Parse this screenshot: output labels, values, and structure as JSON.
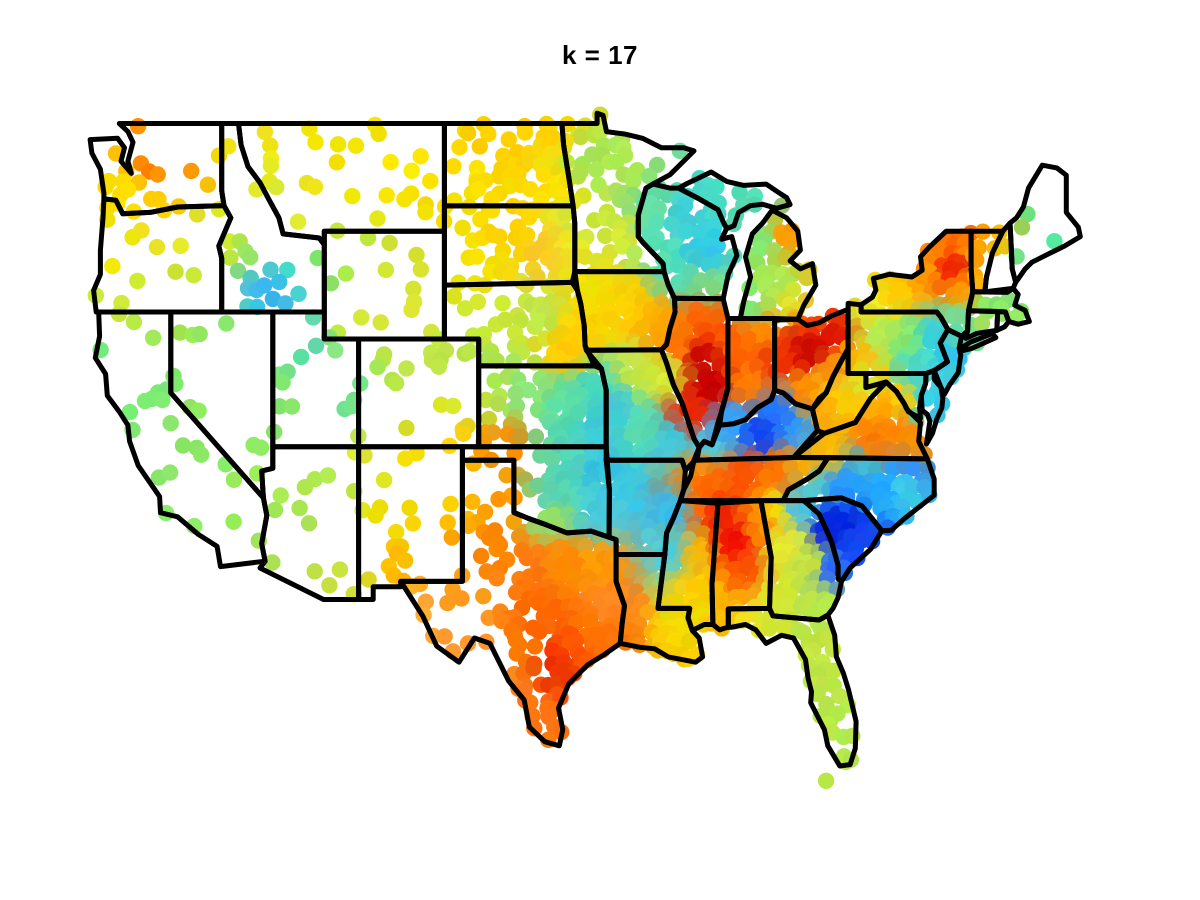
{
  "title": "k = 17",
  "figure": {
    "background": "#ffffff",
    "title_color": "#000000",
    "boundary_color": "#000000",
    "boundary_width": 5
  },
  "chart_data": {
    "type": "scatter",
    "title": "k = 17",
    "description": "US station map, dots colored by cluster value with jet colormap; dense stations in the east, sparse in the west; black state boundaries over dots; no axes.",
    "colormap": "jet",
    "dot_radius": 8.2,
    "projection": {
      "lon_min": -125,
      "lon_max": -67,
      "lat_min": 25,
      "lat_max": 49.5,
      "x_min": 85,
      "x_max": 1080,
      "y_min": 110,
      "y_max": 770
    },
    "density_by_lon": [
      [
        -102.5,
        22
      ],
      [
        -100,
        17
      ],
      [
        -98,
        12.5
      ],
      [
        999,
        9.5
      ]
    ],
    "density_overrides": {
      "NV": 36,
      "CA": 27,
      "OR": 24,
      "WA": 22,
      "ID": 24,
      "UT": 29,
      "AZ": 26,
      "NM": 24,
      "MT": 24,
      "WY": 27,
      "CO": 24,
      "ME": 24,
      "NH": 12.5,
      "VT": 12,
      "MA": 11,
      "CT": 11,
      "RI": 11,
      "MN": 13.5,
      "WI": 11,
      "MIU": 13,
      "MI": 11.5,
      "FL": 12,
      "LI": 10
    },
    "color_field": [
      [
        -123.5,
        48.2,
        "#ffcc00"
      ],
      [
        -122.4,
        47.9,
        "#ff9900"
      ],
      [
        -120.3,
        47.9,
        "#ff2200"
      ],
      [
        -119.3,
        48.5,
        "#ffaa00"
      ],
      [
        -118.4,
        47.6,
        "#ff9900"
      ],
      [
        -120.5,
        46.4,
        "#ffcc00"
      ],
      [
        -123.3,
        46.8,
        "#ffe000"
      ],
      [
        -117.6,
        47.8,
        "#f2e300"
      ],
      [
        -123.5,
        44.6,
        "#f5e800"
      ],
      [
        -121,
        44.5,
        "#e8e82a"
      ],
      [
        -117.8,
        44.8,
        "#e0e82a"
      ],
      [
        -122.5,
        42.3,
        "#cce838"
      ],
      [
        -119,
        42.5,
        "#c8e83d"
      ],
      [
        -116.3,
        46.3,
        "#dcee22"
      ],
      [
        -114.8,
        44.8,
        "#a2e852"
      ],
      [
        -113.8,
        42.9,
        "#38b8f0"
      ],
      [
        -112.8,
        43.4,
        "#48dcc8"
      ],
      [
        -111.6,
        43.9,
        "#80e870"
      ],
      [
        -115.8,
        48.3,
        "#e8e82a"
      ],
      [
        -112.3,
        48.2,
        "#f5e500"
      ],
      [
        -109.5,
        48.3,
        "#f2e200"
      ],
      [
        -106,
        48.2,
        "#ffee00"
      ],
      [
        -104.8,
        46.3,
        "#f8e000"
      ],
      [
        -109.8,
        46.2,
        "#f0e600"
      ],
      [
        -112.8,
        45.8,
        "#e5e830"
      ],
      [
        -110.3,
        44.2,
        "#b5e84d"
      ],
      [
        -107.5,
        43.5,
        "#cde83a"
      ],
      [
        -109.8,
        41.8,
        "#d5e835"
      ],
      [
        -105.8,
        41.8,
        "#e2e82d"
      ],
      [
        -100.8,
        48.2,
        "#ffcc00"
      ],
      [
        -97.8,
        48.6,
        "#ffd400"
      ],
      [
        -97.6,
        46.6,
        "#ffe000"
      ],
      [
        -102.6,
        46.8,
        "#f8e200"
      ],
      [
        -100.2,
        44.9,
        "#ffd400"
      ],
      [
        -98,
        44.3,
        "#ffc825"
      ],
      [
        -102.3,
        44.2,
        "#f5e200"
      ],
      [
        -96.8,
        44.5,
        "#eee822"
      ],
      [
        -100.8,
        41.6,
        "#cce838"
      ],
      [
        -98.3,
        41.8,
        "#bee84a"
      ],
      [
        -96.2,
        41.3,
        "#ffd000"
      ],
      [
        -96.9,
        40.5,
        "#ffcc00"
      ],
      [
        -101.8,
        39.6,
        "#abe852"
      ],
      [
        -99.2,
        39,
        "#8ce878"
      ],
      [
        -96.8,
        38.6,
        "#5cdda2"
      ],
      [
        -95.2,
        39.2,
        "#46d4c0"
      ],
      [
        -95,
        37.5,
        "#3eccd8"
      ],
      [
        -95.8,
        47.6,
        "#a5e855"
      ],
      [
        -93.2,
        47.2,
        "#b2e850"
      ],
      [
        -96.2,
        45.2,
        "#c5e842"
      ],
      [
        -93.8,
        44.6,
        "#d5e835"
      ],
      [
        -91.6,
        46.4,
        "#62dda8"
      ],
      [
        -89.8,
        45.6,
        "#3ed0d8"
      ],
      [
        -91.8,
        44.6,
        "#58ddb5"
      ],
      [
        -88.6,
        44.3,
        "#2ec8e8"
      ],
      [
        -90.2,
        43.1,
        "#52ddba"
      ],
      [
        -88.9,
        42.8,
        "#7ce082"
      ],
      [
        -88.3,
        46.3,
        "#45dcc8"
      ],
      [
        -85.8,
        46.5,
        "#52ddb8"
      ],
      [
        -85.6,
        44.6,
        "#85e86c"
      ],
      [
        -83.8,
        44.8,
        "#ff9900"
      ],
      [
        -84.8,
        43.1,
        "#a8e855"
      ],
      [
        -83.6,
        42.3,
        "#e2e82d"
      ],
      [
        -86.3,
        42.3,
        "#7ee875"
      ],
      [
        -95.2,
        42.6,
        "#f0e000"
      ],
      [
        -93.2,
        42.1,
        "#ffd000"
      ],
      [
        -91.6,
        41.6,
        "#ffaa00"
      ],
      [
        -92.8,
        39.8,
        "#c2e845"
      ],
      [
        -91.2,
        39.6,
        "#d5e835"
      ],
      [
        -94,
        38.3,
        "#42ccd4"
      ],
      [
        -92.6,
        37.6,
        "#58ddb0"
      ],
      [
        -90.6,
        37.1,
        "#3ec8e2"
      ],
      [
        -90.3,
        40.8,
        "#ff7700"
      ],
      [
        -89.2,
        41.9,
        "#ff6200"
      ],
      [
        -88.9,
        40.3,
        "#cc0800"
      ],
      [
        -88.5,
        39.2,
        "#c80000"
      ],
      [
        -89.6,
        38.1,
        "#ee2200"
      ],
      [
        -87.9,
        41.4,
        "#ff5500"
      ],
      [
        -87.1,
        40.6,
        "#ff6600"
      ],
      [
        -86.2,
        39.3,
        "#ff7e00"
      ],
      [
        -85.4,
        41.1,
        "#ff8800"
      ],
      [
        -84.6,
        40.3,
        "#f23000"
      ],
      [
        -82.9,
        40.6,
        "#cc0800"
      ],
      [
        -81.4,
        41.1,
        "#dd1400"
      ],
      [
        -82.5,
        41.7,
        "#ff4400"
      ],
      [
        -81,
        39.6,
        "#ff6a00"
      ],
      [
        -83.1,
        39,
        "#ff8800"
      ],
      [
        -88.6,
        36.9,
        "#48cce8"
      ],
      [
        -87.4,
        37.8,
        "#36a6ff"
      ],
      [
        -85.6,
        37.5,
        "#1144ee"
      ],
      [
        -84.6,
        38.3,
        "#2277ff"
      ],
      [
        -83.4,
        37.6,
        "#2e9aff"
      ],
      [
        -89.2,
        36.1,
        "#ff8800"
      ],
      [
        -88.3,
        35.6,
        "#ff6600"
      ],
      [
        -86.4,
        35.8,
        "#ff5500"
      ],
      [
        -84.6,
        35.9,
        "#ff7700"
      ],
      [
        -83,
        36.3,
        "#ffaa00"
      ],
      [
        -90.5,
        34.6,
        "#35bbee"
      ],
      [
        -90.6,
        33,
        "#46cce8"
      ],
      [
        -89,
        34.8,
        "#ff7700"
      ],
      [
        -89.4,
        33,
        "#ffbb00"
      ],
      [
        -89.2,
        31.6,
        "#ffcc00"
      ],
      [
        -89.4,
        30.6,
        "#f0e000"
      ],
      [
        -88.2,
        34.6,
        "#ee2200"
      ],
      [
        -87,
        33.5,
        "#ee1100"
      ],
      [
        -86.4,
        32.2,
        "#ff5500"
      ],
      [
        -87.4,
        31,
        "#ffaa00"
      ],
      [
        -88,
        30.5,
        "#ffbb00"
      ],
      [
        -85.6,
        34.2,
        "#ff8800"
      ],
      [
        -84.6,
        34.6,
        "#ffdd00"
      ],
      [
        -83.4,
        34.7,
        "#46bbee"
      ],
      [
        -84.2,
        33.2,
        "#e5e82d"
      ],
      [
        -82.6,
        32.6,
        "#cae83d"
      ],
      [
        -84.6,
        31.6,
        "#d8e830"
      ],
      [
        -82.2,
        31.2,
        "#bbe84a"
      ],
      [
        -81.2,
        33.9,
        "#0a28e0"
      ],
      [
        -80.8,
        34.1,
        "#0022dd"
      ],
      [
        -79.9,
        33.6,
        "#1648f0"
      ],
      [
        -81.4,
        32.4,
        "#2266ff"
      ],
      [
        -82.6,
        35.4,
        "#48ccd8"
      ],
      [
        -80.6,
        35.5,
        "#2795ff"
      ],
      [
        -78.6,
        35.3,
        "#22a5ff"
      ],
      [
        -77.1,
        35.4,
        "#38cce8"
      ],
      [
        -76.6,
        36.2,
        "#2288ff"
      ],
      [
        -79.6,
        36.3,
        "#38bbdd"
      ],
      [
        -86.6,
        30.7,
        "#eee020"
      ],
      [
        -84.6,
        30.4,
        "#d5e835"
      ],
      [
        -82.6,
        29.6,
        "#c2e842"
      ],
      [
        -81.6,
        28.1,
        "#bee845"
      ],
      [
        -80.6,
        26.6,
        "#b2e84c"
      ],
      [
        -81.9,
        26.4,
        "#b8e848"
      ],
      [
        -83,
        30.4,
        "#b5e84a"
      ],
      [
        -81.6,
        36.9,
        "#ffbb00"
      ],
      [
        -79.2,
        37.1,
        "#ff7a00"
      ],
      [
        -77.6,
        37.5,
        "#ff8800"
      ],
      [
        -76.4,
        36.9,
        "#ff9900"
      ],
      [
        -78.6,
        38.5,
        "#ffaa00"
      ],
      [
        -77.4,
        38.9,
        "#ffcc00"
      ],
      [
        -80.9,
        38.6,
        "#ffc800"
      ],
      [
        -80.9,
        39.4,
        "#e8e82a"
      ],
      [
        -81.9,
        38.2,
        "#ffaa00"
      ],
      [
        -79.6,
        39.5,
        "#d8e830"
      ],
      [
        -76.6,
        39.4,
        "#48dcc8"
      ],
      [
        -75.6,
        38.5,
        "#38cce8"
      ],
      [
        -75.9,
        39.6,
        "#46cce2"
      ],
      [
        -80.1,
        40.3,
        "#ffbb00"
      ],
      [
        -78.6,
        41.1,
        "#b8e850"
      ],
      [
        -77.1,
        40.9,
        "#85e86c"
      ],
      [
        -76.1,
        40.2,
        "#48dcc8"
      ],
      [
        -75.3,
        41,
        "#38ccdd"
      ],
      [
        -74.6,
        40.3,
        "#2ec8e8"
      ],
      [
        -74.9,
        39.4,
        "#42d0e0"
      ],
      [
        -79.1,
        42.2,
        "#e8e82a"
      ],
      [
        -77.6,
        42.8,
        "#ffcc00"
      ],
      [
        -76.1,
        43.3,
        "#ff9900"
      ],
      [
        -74.4,
        43.5,
        "#ee2200"
      ],
      [
        -73.9,
        44.9,
        "#ff6600"
      ],
      [
        -75.6,
        44.5,
        "#ff8800"
      ],
      [
        -73.9,
        42.7,
        "#ff9900"
      ],
      [
        -74.1,
        41.5,
        "#68dda0"
      ],
      [
        -72.9,
        44.4,
        "#ffaa00"
      ],
      [
        -72.6,
        43.3,
        "#ffbb00"
      ],
      [
        -71.5,
        44.9,
        "#ffbb00"
      ],
      [
        -71.5,
        43.2,
        "#a8e855"
      ],
      [
        -72.1,
        42.3,
        "#85e86c"
      ],
      [
        -71.1,
        42.4,
        "#7ee872"
      ],
      [
        -72.6,
        41.8,
        "#9ee85a"
      ],
      [
        -71.3,
        41.7,
        "#95e862"
      ],
      [
        -70.6,
        43.6,
        "#62e890"
      ],
      [
        -69.6,
        44.6,
        "#55e89e"
      ],
      [
        -68.6,
        45.6,
        "#4ee8a6"
      ],
      [
        -69.1,
        46.9,
        "#55e89c"
      ],
      [
        -103.6,
        35.2,
        "#ffcc00"
      ],
      [
        -105.2,
        36.2,
        "#ffdd00"
      ],
      [
        -104.2,
        32.6,
        "#ffaa00"
      ],
      [
        -106.6,
        32.6,
        "#ffbb00"
      ],
      [
        -107.6,
        34.2,
        "#f0e200"
      ],
      [
        -108.6,
        36.2,
        "#e5e82d"
      ],
      [
        -102.8,
        38.9,
        "#d8e830"
      ],
      [
        -104.8,
        37.6,
        "#ffd400"
      ],
      [
        -105.6,
        39.6,
        "#c2e845"
      ],
      [
        -107.6,
        38.2,
        "#9ce85c"
      ],
      [
        -106.2,
        40.6,
        "#b2e850"
      ],
      [
        -110.6,
        39.2,
        "#62dda5"
      ],
      [
        -112.1,
        41.2,
        "#58ddb0"
      ],
      [
        -113.1,
        38.2,
        "#85e86c"
      ],
      [
        -111.6,
        37.2,
        "#98e85e"
      ],
      [
        -117.2,
        40.6,
        "#85e86c"
      ],
      [
        -115.2,
        38.6,
        "#8ee866"
      ],
      [
        -118.2,
        37.6,
        "#95e862"
      ],
      [
        -120.2,
        41.6,
        "#a5e855"
      ],
      [
        -122.6,
        40.6,
        "#75e87c"
      ],
      [
        -121.6,
        38.6,
        "#7ce875"
      ],
      [
        -123.2,
        39.6,
        "#68e888"
      ],
      [
        -119.6,
        36.9,
        "#88e86a"
      ],
      [
        -117.6,
        34.6,
        "#8ee866"
      ],
      [
        -116,
        33.5,
        "#98e85e"
      ],
      [
        -114.6,
        34.1,
        "#a5e855"
      ],
      [
        -112.2,
        34.6,
        "#aee852"
      ],
      [
        -110.2,
        32.6,
        "#c5e842"
      ],
      [
        -110.3,
        35.6,
        "#b5e84c"
      ],
      [
        -109.6,
        33.6,
        "#cee83a"
      ],
      [
        -100.3,
        36.8,
        "#ff8800"
      ],
      [
        -98.6,
        36.6,
        "#66dd99"
      ],
      [
        -96.6,
        36.6,
        "#52d4bb"
      ],
      [
        -94.9,
        36.2,
        "#35c4e0"
      ],
      [
        -97.6,
        35.1,
        "#58d4b2"
      ],
      [
        -95.1,
        34.4,
        "#46cce0"
      ],
      [
        -97.7,
        34.2,
        "#95e065"
      ],
      [
        -102.1,
        35.6,
        "#ffbb00"
      ],
      [
        -100.6,
        35.1,
        "#ff9900"
      ],
      [
        -101.2,
        33.2,
        "#ff8800"
      ],
      [
        -103.1,
        31.6,
        "#ff9922"
      ],
      [
        -105.6,
        31.2,
        "#ffaa33"
      ],
      [
        -99.1,
        32.6,
        "#ff7711"
      ],
      [
        -97.1,
        32.7,
        "#ff8800"
      ],
      [
        -95.1,
        32.6,
        "#ff9900"
      ],
      [
        -94.6,
        31.1,
        "#ff8822"
      ],
      [
        -98.1,
        30.6,
        "#ff6600"
      ],
      [
        -99.6,
        29.6,
        "#ff7700"
      ],
      [
        -97.6,
        28.9,
        "#ee3300"
      ],
      [
        -96.4,
        29.6,
        "#ff5500"
      ],
      [
        -95.4,
        30.2,
        "#ff7700"
      ],
      [
        -98.6,
        26.6,
        "#ff7711"
      ],
      [
        -100.6,
        28.2,
        "#ff8822"
      ],
      [
        -102.6,
        30.1,
        "#ff9933"
      ]
    ],
    "extra_dots": [
      [
        -81.8,
        24.6,
        "#b8e845"
      ]
    ]
  }
}
